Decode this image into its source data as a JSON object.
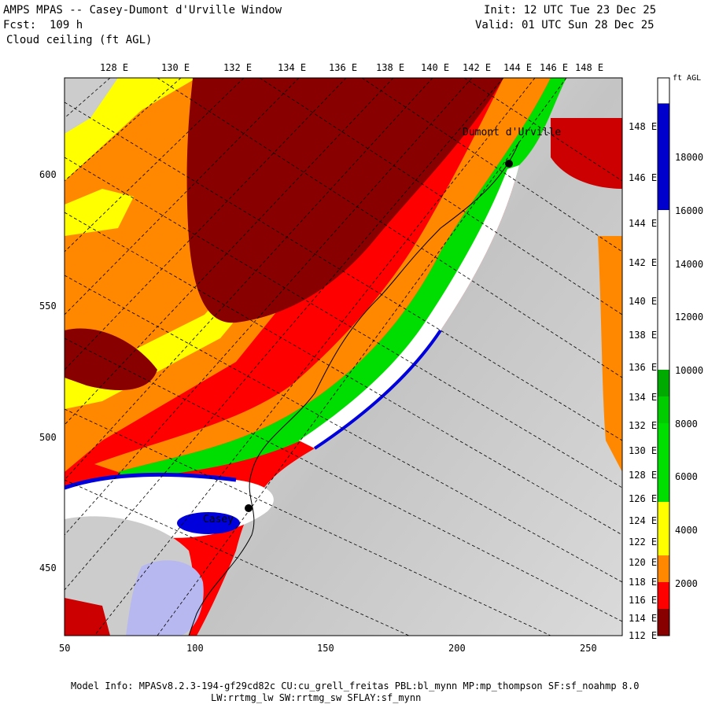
{
  "header": {
    "title": "AMPS MPAS -- Casey-Dumont d'Urville Window",
    "forecast": "Fcst:  109 h",
    "field": "Cloud ceiling (ft AGL)",
    "init": "Init: 12 UTC Tue 23 Dec 25",
    "valid": "Valid: 01 UTC Sun 28 Dec 25"
  },
  "map": {
    "top_lon_labels": [
      "128 E",
      "130 E",
      "132 E",
      "134 E",
      "136 E",
      "138 E",
      "140 E",
      "142 E",
      "144 E",
      "146 E",
      "148 E"
    ],
    "right_lat_labels": [
      "148 E",
      "146 E",
      "144 E",
      "142 E",
      "140 E",
      "138 E",
      "136 E",
      "134 E",
      "132 E",
      "130 E",
      "128 E",
      "126 E",
      "124 E",
      "122 E",
      "120 E",
      "118 E",
      "116 E",
      "114 E",
      "112 E"
    ],
    "y_ticks": [
      "600",
      "550",
      "500",
      "450"
    ],
    "x_ticks": [
      "50",
      "100",
      "150",
      "200",
      "250"
    ],
    "stations": [
      "Dumont d'Urville",
      "Casey"
    ]
  },
  "colorbar": {
    "units": "ft AGL",
    "labels": [
      "18000",
      "16000",
      "14000",
      "12000",
      "10000",
      "8000",
      "6000",
      "4000",
      "2000"
    ],
    "colors": [
      "#ffffff",
      "#0000cc",
      "#ffffff",
      "#ffffff",
      "#ffffff",
      "#00aa00",
      "#00dd00",
      "#ffff00",
      "#ff8800",
      "#ff0000",
      "#880000"
    ]
  },
  "footer": {
    "line1": "Model Info: MPASv8.2.3-194-gf29cd82c CU:cu_grell_freitas PBL:bl_mynn MP:mp_thompson SF:sf_noahmp 8.0",
    "line2": "LW:rrtmg_lw SW:rrtmg_sw SFLAY:sf_mynn"
  }
}
